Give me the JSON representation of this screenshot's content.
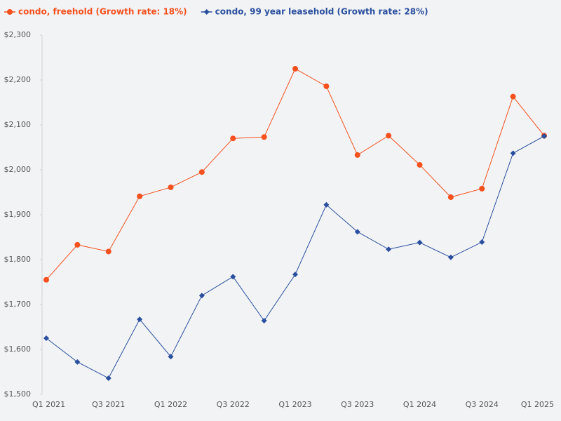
{
  "chart_data": {
    "type": "line",
    "categories": [
      "Q1 2021",
      null,
      "Q3 2021",
      null,
      "Q1 2022",
      null,
      "Q3 2022",
      null,
      "Q1 2023",
      null,
      "Q3 2023",
      null,
      "Q1 2024",
      null,
      "Q3 2024",
      null,
      "Q1 2025"
    ],
    "series": [
      {
        "name": "condo, freehold (Growth rate: 18%)",
        "color": "#f4511e",
        "marker": "circle",
        "values": [
          1755,
          1833,
          1818,
          1941,
          1961,
          1995,
          2070,
          2073,
          2225,
          2186,
          2033,
          2076,
          2011,
          1939,
          1958,
          2163,
          2076
        ]
      },
      {
        "name": "condo, 99 year leasehold (Growth rate: 28%)",
        "color": "#2a4f9e",
        "marker": "diamond",
        "values": [
          1625,
          1572,
          1536,
          1667,
          1584,
          1720,
          1762,
          1664,
          1767,
          1922,
          1862,
          1823,
          1838,
          1805,
          1839,
          2037,
          2075
        ]
      }
    ],
    "ylim": [
      1500,
      2300
    ],
    "yticks": [
      {
        "value": 1500,
        "label": "$1,500"
      },
      {
        "value": 1600,
        "label": "$1,600"
      },
      {
        "value": 1700,
        "label": "$1,700"
      },
      {
        "value": 1800,
        "label": "$1,800"
      },
      {
        "value": 1900,
        "label": "$1,900"
      },
      {
        "value": 2000,
        "label": "$2,000"
      },
      {
        "value": 2100,
        "label": "$2,100"
      },
      {
        "value": 2200,
        "label": "$2,200"
      },
      {
        "value": 2300,
        "label": "$2,300"
      }
    ],
    "grid": false,
    "legend": "top-left"
  }
}
